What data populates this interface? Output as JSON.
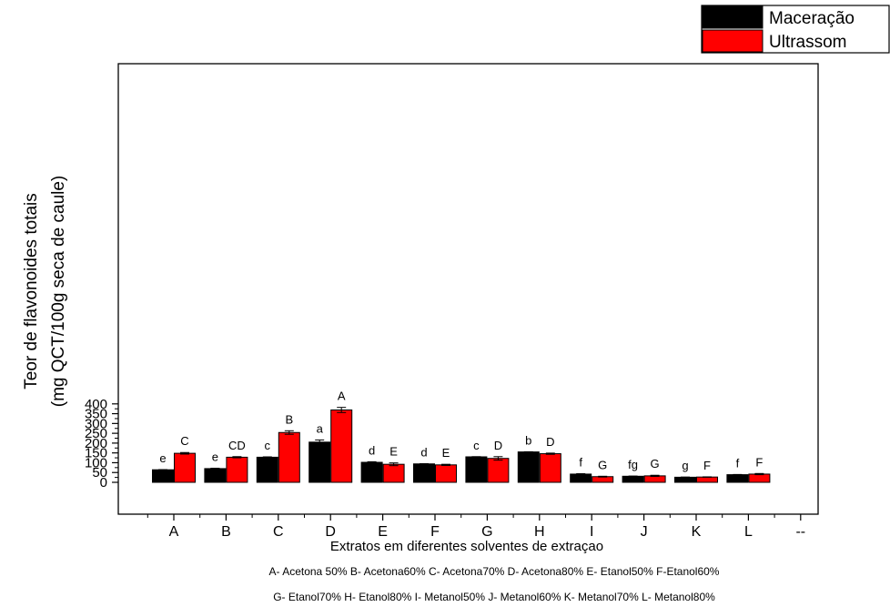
{
  "chart_data": {
    "type": "bar",
    "title": "",
    "ylabel_line1": "Teor de flavonoides totais",
    "ylabel_line2": "(mg QCT/100g seca de caule)",
    "xlabel": "Extratos em diferentes solventes de extraçao",
    "categories": [
      "A",
      "B",
      "C",
      "D",
      "E",
      "F",
      "G",
      "H",
      "I",
      "J",
      "K",
      "L"
    ],
    "extra_tick_label": "--",
    "ylim": [
      -40,
      420
    ],
    "yticks": [
      0,
      50,
      100,
      150,
      200,
      250,
      300,
      350,
      400
    ],
    "series": [
      {
        "name": "Maceração",
        "color": "#000000",
        "values": [
          64,
          70,
          128,
          205,
          102,
          94,
          130,
          155,
          42,
          31,
          26,
          39
        ],
        "errors": [
          1,
          2,
          2,
          11,
          3,
          1,
          1,
          1,
          2,
          1,
          1,
          1
        ],
        "letters": [
          "e",
          "e",
          "c",
          "a",
          "d",
          "d",
          "c",
          "b",
          "f",
          "fg",
          "g",
          "f"
        ]
      },
      {
        "name": "Ultrassom",
        "color": "#ff0000",
        "values": [
          148,
          128,
          254,
          369,
          92,
          89,
          122,
          146,
          29,
          33,
          27,
          42
        ],
        "errors": [
          4,
          3,
          9,
          13,
          7,
          3,
          9,
          3,
          2,
          3,
          1,
          3
        ],
        "letters": [
          "C",
          "CD",
          "B",
          "A",
          "E",
          "E",
          "D",
          "D",
          "G",
          "G",
          "F",
          "F"
        ]
      }
    ],
    "legend_position": "top-right",
    "footnote_line1": "A- Acetona 50% B- Acetona60% C- Acetona70% D- Acetona80% E- Etanol50% F-Etanol60%",
    "footnote_line2": "G- Etanol70% H- Etanol80% I- Metanol50% J- Metanol60% K- Metanol70% L- Metanol80%"
  }
}
